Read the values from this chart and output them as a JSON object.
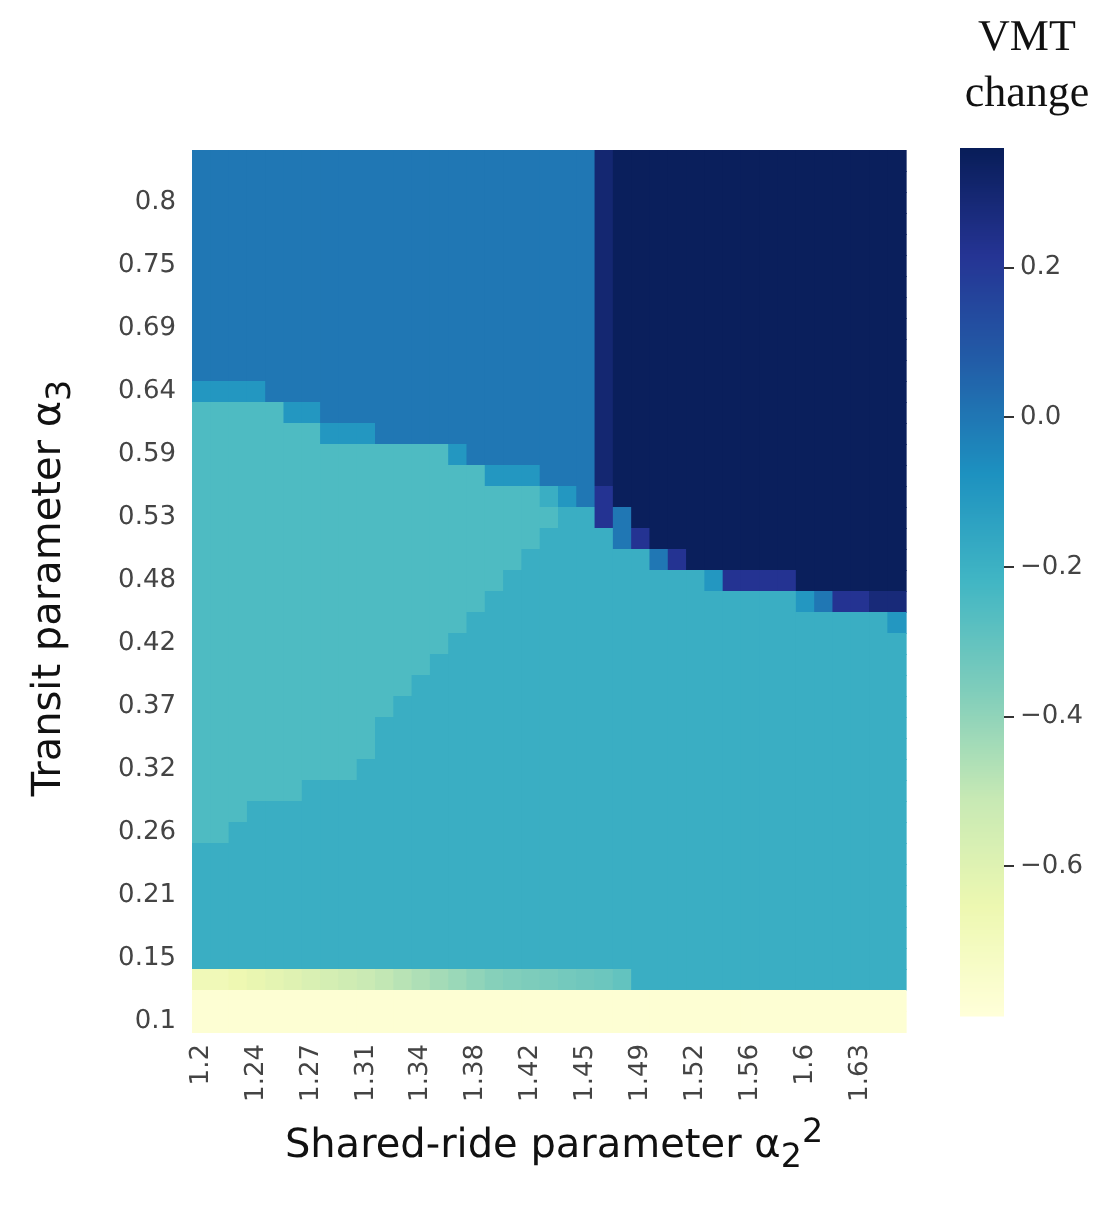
{
  "chart_data": {
    "type": "heatmap",
    "xlabel": "Shared-ride parameter α$_{2}$$^{2}$",
    "ylabel": "Transit parameter α$_{3}$",
    "clabel": "VMT change",
    "categories": [
      "1.2",
      null,
      null,
      "1.24",
      null,
      null,
      "1.27",
      null,
      null,
      "1.31",
      null,
      null,
      "1.34",
      null,
      null,
      "1.38",
      null,
      null,
      "1.42",
      null,
      null,
      "1.45",
      null,
      null,
      "1.49",
      null,
      null,
      "1.52",
      null,
      null,
      "1.56",
      null,
      null,
      "1.6",
      null,
      null,
      "1.63",
      null,
      null
    ],
    "y_categories": [
      null,
      null,
      "0.8",
      null,
      null,
      "0.75",
      null,
      null,
      "0.69",
      null,
      null,
      "0.64",
      null,
      null,
      "0.59",
      null,
      null,
      "0.53",
      null,
      null,
      "0.48",
      null,
      null,
      "0.42",
      null,
      null,
      "0.37",
      null,
      null,
      "0.32",
      null,
      null,
      "0.26",
      null,
      null,
      "0.21",
      null,
      null,
      "0.15",
      null,
      null,
      "0.1"
    ],
    "clim": [
      -0.8,
      0.36
    ],
    "cticks": [
      0.2,
      {
        "value": 0,
        "label": "0.0"
      },
      {
        "value": -0.2,
        "label": "−0.2"
      },
      {
        "value": -0.4,
        "label": "−0.4"
      },
      {
        "value": -0.6,
        "label": "−0.6"
      }
    ],
    "cells": [
      [
        0,
        0,
        0,
        0,
        0,
        0,
        0,
        0,
        0,
        0,
        0,
        0,
        0,
        0,
        0,
        0,
        0,
        0,
        0,
        0,
        0,
        0,
        0.3,
        0.35,
        0.35,
        0.35,
        0.35,
        0.35,
        0.35,
        0.35,
        0.35,
        0.35,
        0.35,
        0.35,
        0.35,
        0.35,
        0.35,
        0.35,
        0.35
      ],
      [
        0,
        0,
        0,
        0,
        0,
        0,
        0,
        0,
        0,
        0,
        0,
        0,
        0,
        0,
        0,
        0,
        0,
        0,
        0,
        0,
        0,
        0,
        0.3,
        0.35,
        0.35,
        0.35,
        0.35,
        0.35,
        0.35,
        0.35,
        0.35,
        0.35,
        0.35,
        0.35,
        0.35,
        0.35,
        0.35,
        0.35,
        0.35
      ],
      [
        0,
        0,
        0,
        0,
        0,
        0,
        0,
        0,
        0,
        0,
        0,
        0,
        0,
        0,
        0,
        0,
        0,
        0,
        0,
        0,
        0,
        0,
        0.3,
        0.35,
        0.35,
        0.35,
        0.35,
        0.35,
        0.35,
        0.35,
        0.35,
        0.35,
        0.35,
        0.35,
        0.35,
        0.35,
        0.35,
        0.35,
        0.35
      ],
      [
        0,
        0,
        0,
        0,
        0,
        0,
        0,
        0,
        0,
        0,
        0,
        0,
        0,
        0,
        0,
        0,
        0,
        0,
        0,
        0,
        0,
        0,
        0.3,
        0.35,
        0.35,
        0.35,
        0.35,
        0.35,
        0.35,
        0.35,
        0.35,
        0.35,
        0.35,
        0.35,
        0.35,
        0.35,
        0.35,
        0.35,
        0.35
      ],
      [
        0,
        0,
        0,
        0,
        0,
        0,
        0,
        0,
        0,
        0,
        0,
        0,
        0,
        0,
        0,
        0,
        0,
        0,
        0,
        0,
        0,
        0,
        0.3,
        0.35,
        0.35,
        0.35,
        0.35,
        0.35,
        0.35,
        0.35,
        0.35,
        0.35,
        0.35,
        0.35,
        0.35,
        0.35,
        0.35,
        0.35,
        0.35
      ],
      [
        0,
        0,
        0,
        0,
        0,
        0,
        0,
        0,
        0,
        0,
        0,
        0,
        0,
        0,
        0,
        0,
        0,
        0,
        0,
        0,
        0,
        0,
        0.3,
        0.35,
        0.35,
        0.35,
        0.35,
        0.35,
        0.35,
        0.35,
        0.35,
        0.35,
        0.35,
        0.35,
        0.35,
        0.35,
        0.35,
        0.35,
        0.35
      ],
      [
        0,
        0,
        0,
        0,
        0,
        0,
        0,
        0,
        0,
        0,
        0,
        0,
        0,
        0,
        0,
        0,
        0,
        0,
        0,
        0,
        0,
        0,
        0.3,
        0.35,
        0.35,
        0.35,
        0.35,
        0.35,
        0.35,
        0.35,
        0.35,
        0.35,
        0.35,
        0.35,
        0.35,
        0.35,
        0.35,
        0.35,
        0.35
      ],
      [
        0,
        0,
        0,
        0,
        0,
        0,
        0,
        0,
        0,
        0,
        0,
        0,
        0,
        0,
        0,
        0,
        0,
        0,
        0,
        0,
        0,
        0,
        0.3,
        0.35,
        0.35,
        0.35,
        0.35,
        0.35,
        0.35,
        0.35,
        0.35,
        0.35,
        0.35,
        0.35,
        0.35,
        0.35,
        0.35,
        0.35,
        0.35
      ],
      [
        0,
        0,
        0,
        0,
        0,
        0,
        0,
        0,
        0,
        0,
        0,
        0,
        0,
        0,
        0,
        0,
        0,
        0,
        0,
        0,
        0,
        0,
        0.3,
        0.35,
        0.35,
        0.35,
        0.35,
        0.35,
        0.35,
        0.35,
        0.35,
        0.35,
        0.35,
        0.35,
        0.35,
        0.35,
        0.35,
        0.35,
        0.35
      ],
      [
        0,
        0,
        0,
        0,
        0,
        0,
        0,
        0,
        0,
        0,
        0,
        0,
        0,
        0,
        0,
        0,
        0,
        0,
        0,
        0,
        0,
        0,
        0.3,
        0.35,
        0.35,
        0.35,
        0.35,
        0.35,
        0.35,
        0.35,
        0.35,
        0.35,
        0.35,
        0.35,
        0.35,
        0.35,
        0.35,
        0.35,
        0.35
      ],
      [
        0,
        0,
        0,
        0,
        0,
        0,
        0,
        0,
        0,
        0,
        0,
        0,
        0,
        0,
        0,
        0,
        0,
        0,
        0,
        0,
        0,
        0,
        0.3,
        0.35,
        0.35,
        0.35,
        0.35,
        0.35,
        0.35,
        0.35,
        0.35,
        0.35,
        0.35,
        0.35,
        0.35,
        0.35,
        0.35,
        0.35,
        0.35
      ],
      [
        -0.1,
        -0.1,
        -0.1,
        -0.1,
        0,
        0,
        0,
        0,
        0,
        0,
        0,
        0,
        0,
        0,
        0,
        0,
        0,
        0,
        0,
        0,
        0,
        0,
        0.3,
        0.35,
        0.35,
        0.35,
        0.35,
        0.35,
        0.35,
        0.35,
        0.35,
        0.35,
        0.35,
        0.35,
        0.35,
        0.35,
        0.35,
        0.35,
        0.35
      ],
      [
        -0.25,
        -0.25,
        -0.25,
        -0.25,
        -0.25,
        -0.1,
        -0.1,
        0,
        0,
        0,
        0,
        0,
        0,
        0,
        0,
        0,
        0,
        0,
        0,
        0,
        0,
        0,
        0.3,
        0.35,
        0.35,
        0.35,
        0.35,
        0.35,
        0.35,
        0.35,
        0.35,
        0.35,
        0.35,
        0.35,
        0.35,
        0.35,
        0.35,
        0.35,
        0.35
      ],
      [
        -0.25,
        -0.25,
        -0.25,
        -0.25,
        -0.25,
        -0.25,
        -0.25,
        -0.1,
        -0.1,
        -0.1,
        0,
        0,
        0,
        0,
        0,
        0,
        0,
        0,
        0,
        0,
        0,
        0,
        0.3,
        0.35,
        0.35,
        0.35,
        0.35,
        0.35,
        0.35,
        0.35,
        0.35,
        0.35,
        0.35,
        0.35,
        0.35,
        0.35,
        0.35,
        0.35,
        0.35
      ],
      [
        -0.25,
        -0.25,
        -0.25,
        -0.25,
        -0.25,
        -0.25,
        -0.25,
        -0.25,
        -0.25,
        -0.25,
        -0.25,
        -0.25,
        -0.25,
        -0.25,
        -0.1,
        0,
        0,
        0,
        0,
        0,
        0,
        0,
        0.3,
        0.35,
        0.35,
        0.35,
        0.35,
        0.35,
        0.35,
        0.35,
        0.35,
        0.35,
        0.35,
        0.35,
        0.35,
        0.35,
        0.35,
        0.35,
        0.35
      ],
      [
        -0.25,
        -0.25,
        -0.25,
        -0.25,
        -0.25,
        -0.25,
        -0.25,
        -0.25,
        -0.25,
        -0.25,
        -0.25,
        -0.25,
        -0.25,
        -0.25,
        -0.25,
        -0.25,
        -0.1,
        -0.1,
        -0.1,
        0,
        0,
        0,
        0.3,
        0.35,
        0.35,
        0.35,
        0.35,
        0.35,
        0.35,
        0.35,
        0.35,
        0.35,
        0.35,
        0.35,
        0.35,
        0.35,
        0.35,
        0.35,
        0.35
      ],
      [
        -0.25,
        -0.25,
        -0.25,
        -0.25,
        -0.25,
        -0.25,
        -0.25,
        -0.25,
        -0.25,
        -0.25,
        -0.25,
        -0.25,
        -0.25,
        -0.25,
        -0.25,
        -0.25,
        -0.25,
        -0.25,
        -0.25,
        -0.19,
        -0.1,
        0,
        0.22,
        0.35,
        0.35,
        0.35,
        0.35,
        0.35,
        0.35,
        0.35,
        0.35,
        0.35,
        0.35,
        0.35,
        0.35,
        0.35,
        0.35,
        0.35,
        0.35
      ],
      [
        -0.25,
        -0.25,
        -0.25,
        -0.25,
        -0.25,
        -0.25,
        -0.25,
        -0.25,
        -0.25,
        -0.25,
        -0.25,
        -0.25,
        -0.25,
        -0.25,
        -0.25,
        -0.25,
        -0.25,
        -0.25,
        -0.25,
        -0.25,
        -0.19,
        -0.19,
        0.22,
        0,
        0.35,
        0.35,
        0.35,
        0.35,
        0.35,
        0.35,
        0.35,
        0.35,
        0.35,
        0.35,
        0.35,
        0.35,
        0.35,
        0.35,
        0.35
      ],
      [
        -0.25,
        -0.25,
        -0.25,
        -0.25,
        -0.25,
        -0.25,
        -0.25,
        -0.25,
        -0.25,
        -0.25,
        -0.25,
        -0.25,
        -0.25,
        -0.25,
        -0.25,
        -0.25,
        -0.25,
        -0.25,
        -0.25,
        -0.19,
        -0.19,
        -0.19,
        -0.19,
        0,
        0.22,
        0.35,
        0.35,
        0.35,
        0.35,
        0.35,
        0.35,
        0.35,
        0.35,
        0.35,
        0.35,
        0.35,
        0.35,
        0.35,
        0.35
      ],
      [
        -0.25,
        -0.25,
        -0.25,
        -0.25,
        -0.25,
        -0.25,
        -0.25,
        -0.25,
        -0.25,
        -0.25,
        -0.25,
        -0.25,
        -0.25,
        -0.25,
        -0.25,
        -0.25,
        -0.25,
        -0.25,
        -0.19,
        -0.19,
        -0.19,
        -0.19,
        -0.19,
        -0.19,
        -0.19,
        0,
        0.22,
        0.35,
        0.35,
        0.35,
        0.35,
        0.35,
        0.35,
        0.35,
        0.35,
        0.35,
        0.35,
        0.35,
        0.35
      ],
      [
        -0.25,
        -0.25,
        -0.25,
        -0.25,
        -0.25,
        -0.25,
        -0.25,
        -0.25,
        -0.25,
        -0.25,
        -0.25,
        -0.25,
        -0.25,
        -0.25,
        -0.25,
        -0.25,
        -0.25,
        -0.19,
        -0.19,
        -0.19,
        -0.19,
        -0.19,
        -0.19,
        -0.19,
        -0.19,
        -0.19,
        -0.19,
        -0.19,
        -0.1,
        0.22,
        0.22,
        0.22,
        0.22,
        0.35,
        0.35,
        0.35,
        0.35,
        0.35,
        0.35
      ],
      [
        -0.25,
        -0.25,
        -0.25,
        -0.25,
        -0.25,
        -0.25,
        -0.25,
        -0.25,
        -0.25,
        -0.25,
        -0.25,
        -0.25,
        -0.25,
        -0.25,
        -0.25,
        -0.25,
        -0.19,
        -0.19,
        -0.19,
        -0.19,
        -0.19,
        -0.19,
        -0.19,
        -0.19,
        -0.19,
        -0.19,
        -0.19,
        -0.19,
        -0.19,
        -0.19,
        -0.19,
        -0.19,
        -0.19,
        -0.1,
        0,
        0.22,
        0.22,
        0.28,
        0.28
      ],
      [
        -0.25,
        -0.25,
        -0.25,
        -0.25,
        -0.25,
        -0.25,
        -0.25,
        -0.25,
        -0.25,
        -0.25,
        -0.25,
        -0.25,
        -0.25,
        -0.25,
        -0.25,
        -0.19,
        -0.19,
        -0.19,
        -0.19,
        -0.19,
        -0.19,
        -0.19,
        -0.19,
        -0.19,
        -0.19,
        -0.19,
        -0.19,
        -0.19,
        -0.19,
        -0.19,
        -0.19,
        -0.19,
        -0.19,
        -0.19,
        -0.19,
        -0.19,
        -0.19,
        -0.19,
        -0.1
      ],
      [
        -0.25,
        -0.25,
        -0.25,
        -0.25,
        -0.25,
        -0.25,
        -0.25,
        -0.25,
        -0.25,
        -0.25,
        -0.25,
        -0.25,
        -0.25,
        -0.25,
        -0.19,
        -0.19,
        -0.19,
        -0.19,
        -0.19,
        -0.19,
        -0.19,
        -0.19,
        -0.19,
        -0.19,
        -0.19,
        -0.19,
        -0.19,
        -0.19,
        -0.19,
        -0.19,
        -0.19,
        -0.19,
        -0.19,
        -0.19,
        -0.19,
        -0.19,
        -0.19,
        -0.19,
        -0.19
      ],
      [
        -0.25,
        -0.25,
        -0.25,
        -0.25,
        -0.25,
        -0.25,
        -0.25,
        -0.25,
        -0.25,
        -0.25,
        -0.25,
        -0.25,
        -0.25,
        -0.19,
        -0.19,
        -0.19,
        -0.19,
        -0.19,
        -0.19,
        -0.19,
        -0.19,
        -0.19,
        -0.19,
        -0.19,
        -0.19,
        -0.19,
        -0.19,
        -0.19,
        -0.19,
        -0.19,
        -0.19,
        -0.19,
        -0.19,
        -0.19,
        -0.19,
        -0.19,
        -0.19,
        -0.19,
        -0.19
      ],
      [
        -0.25,
        -0.25,
        -0.25,
        -0.25,
        -0.25,
        -0.25,
        -0.25,
        -0.25,
        -0.25,
        -0.25,
        -0.25,
        -0.25,
        -0.19,
        -0.19,
        -0.19,
        -0.19,
        -0.19,
        -0.19,
        -0.19,
        -0.19,
        -0.19,
        -0.19,
        -0.19,
        -0.19,
        -0.19,
        -0.19,
        -0.19,
        -0.19,
        -0.19,
        -0.19,
        -0.19,
        -0.19,
        -0.19,
        -0.19,
        -0.19,
        -0.19,
        -0.19,
        -0.19,
        -0.19
      ],
      [
        -0.25,
        -0.25,
        -0.25,
        -0.25,
        -0.25,
        -0.25,
        -0.25,
        -0.25,
        -0.25,
        -0.25,
        -0.25,
        -0.19,
        -0.19,
        -0.19,
        -0.19,
        -0.19,
        -0.19,
        -0.19,
        -0.19,
        -0.19,
        -0.19,
        -0.19,
        -0.19,
        -0.19,
        -0.19,
        -0.19,
        -0.19,
        -0.19,
        -0.19,
        -0.19,
        -0.19,
        -0.19,
        -0.19,
        -0.19,
        -0.19,
        -0.19,
        -0.19,
        -0.19,
        -0.19
      ],
      [
        -0.25,
        -0.25,
        -0.25,
        -0.25,
        -0.25,
        -0.25,
        -0.25,
        -0.25,
        -0.25,
        -0.25,
        -0.19,
        -0.19,
        -0.19,
        -0.19,
        -0.19,
        -0.19,
        -0.19,
        -0.19,
        -0.19,
        -0.19,
        -0.19,
        -0.19,
        -0.19,
        -0.19,
        -0.19,
        -0.19,
        -0.19,
        -0.19,
        -0.19,
        -0.19,
        -0.19,
        -0.19,
        -0.19,
        -0.19,
        -0.19,
        -0.19,
        -0.19,
        -0.19,
        -0.19
      ],
      [
        -0.25,
        -0.25,
        -0.25,
        -0.25,
        -0.25,
        -0.25,
        -0.25,
        -0.25,
        -0.25,
        -0.25,
        -0.19,
        -0.19,
        -0.19,
        -0.19,
        -0.19,
        -0.19,
        -0.19,
        -0.19,
        -0.19,
        -0.19,
        -0.19,
        -0.19,
        -0.19,
        -0.19,
        -0.19,
        -0.19,
        -0.19,
        -0.19,
        -0.19,
        -0.19,
        -0.19,
        -0.19,
        -0.19,
        -0.19,
        -0.19,
        -0.19,
        -0.19,
        -0.19,
        -0.19
      ],
      [
        -0.25,
        -0.25,
        -0.25,
        -0.25,
        -0.25,
        -0.25,
        -0.25,
        -0.25,
        -0.25,
        -0.19,
        -0.19,
        -0.19,
        -0.19,
        -0.19,
        -0.19,
        -0.19,
        -0.19,
        -0.19,
        -0.19,
        -0.19,
        -0.19,
        -0.19,
        -0.19,
        -0.19,
        -0.19,
        -0.19,
        -0.19,
        -0.19,
        -0.19,
        -0.19,
        -0.19,
        -0.19,
        -0.19,
        -0.19,
        -0.19,
        -0.19,
        -0.19,
        -0.19,
        -0.19
      ],
      [
        -0.25,
        -0.25,
        -0.25,
        -0.25,
        -0.25,
        -0.25,
        -0.19,
        -0.19,
        -0.19,
        -0.19,
        -0.19,
        -0.19,
        -0.19,
        -0.19,
        -0.19,
        -0.19,
        -0.19,
        -0.19,
        -0.19,
        -0.19,
        -0.19,
        -0.19,
        -0.19,
        -0.19,
        -0.19,
        -0.19,
        -0.19,
        -0.19,
        -0.19,
        -0.19,
        -0.19,
        -0.19,
        -0.19,
        -0.19,
        -0.19,
        -0.19,
        -0.19,
        -0.19,
        -0.19
      ],
      [
        -0.25,
        -0.25,
        -0.25,
        -0.19,
        -0.19,
        -0.19,
        -0.19,
        -0.19,
        -0.19,
        -0.19,
        -0.19,
        -0.19,
        -0.19,
        -0.19,
        -0.19,
        -0.19,
        -0.19,
        -0.19,
        -0.19,
        -0.19,
        -0.19,
        -0.19,
        -0.19,
        -0.19,
        -0.19,
        -0.19,
        -0.19,
        -0.19,
        -0.19,
        -0.19,
        -0.19,
        -0.19,
        -0.19,
        -0.19,
        -0.19,
        -0.19,
        -0.19,
        -0.19,
        -0.19
      ],
      [
        -0.25,
        -0.25,
        -0.19,
        -0.19,
        -0.19,
        -0.19,
        -0.19,
        -0.19,
        -0.19,
        -0.19,
        -0.19,
        -0.19,
        -0.19,
        -0.19,
        -0.19,
        -0.19,
        -0.19,
        -0.19,
        -0.19,
        -0.19,
        -0.19,
        -0.19,
        -0.19,
        -0.19,
        -0.19,
        -0.19,
        -0.19,
        -0.19,
        -0.19,
        -0.19,
        -0.19,
        -0.19,
        -0.19,
        -0.19,
        -0.19,
        -0.19,
        -0.19,
        -0.19,
        -0.19
      ],
      [
        -0.19,
        -0.19,
        -0.19,
        -0.19,
        -0.19,
        -0.19,
        -0.19,
        -0.19,
        -0.19,
        -0.19,
        -0.19,
        -0.19,
        -0.19,
        -0.19,
        -0.19,
        -0.19,
        -0.19,
        -0.19,
        -0.19,
        -0.19,
        -0.19,
        -0.19,
        -0.19,
        -0.19,
        -0.19,
        -0.19,
        -0.19,
        -0.19,
        -0.19,
        -0.19,
        -0.19,
        -0.19,
        -0.19,
        -0.19,
        -0.19,
        -0.19,
        -0.19,
        -0.19,
        -0.19
      ],
      [
        -0.19,
        -0.19,
        -0.19,
        -0.19,
        -0.19,
        -0.19,
        -0.19,
        -0.19,
        -0.19,
        -0.19,
        -0.19,
        -0.19,
        -0.19,
        -0.19,
        -0.19,
        -0.19,
        -0.19,
        -0.19,
        -0.19,
        -0.19,
        -0.19,
        -0.19,
        -0.19,
        -0.19,
        -0.19,
        -0.19,
        -0.19,
        -0.19,
        -0.19,
        -0.19,
        -0.19,
        -0.19,
        -0.19,
        -0.19,
        -0.19,
        -0.19,
        -0.19,
        -0.19,
        -0.19
      ],
      [
        -0.19,
        -0.19,
        -0.19,
        -0.19,
        -0.19,
        -0.19,
        -0.19,
        -0.19,
        -0.19,
        -0.19,
        -0.19,
        -0.19,
        -0.19,
        -0.19,
        -0.19,
        -0.19,
        -0.19,
        -0.19,
        -0.19,
        -0.19,
        -0.19,
        -0.19,
        -0.19,
        -0.19,
        -0.19,
        -0.19,
        -0.19,
        -0.19,
        -0.19,
        -0.19,
        -0.19,
        -0.19,
        -0.19,
        -0.19,
        -0.19,
        -0.19,
        -0.19,
        -0.19,
        -0.19
      ],
      [
        -0.19,
        -0.19,
        -0.19,
        -0.19,
        -0.19,
        -0.19,
        -0.19,
        -0.19,
        -0.19,
        -0.19,
        -0.19,
        -0.19,
        -0.19,
        -0.19,
        -0.19,
        -0.19,
        -0.19,
        -0.19,
        -0.19,
        -0.19,
        -0.19,
        -0.19,
        -0.19,
        -0.19,
        -0.19,
        -0.19,
        -0.19,
        -0.19,
        -0.19,
        -0.19,
        -0.19,
        -0.19,
        -0.19,
        -0.19,
        -0.19,
        -0.19,
        -0.19,
        -0.19,
        -0.19
      ],
      [
        -0.19,
        -0.19,
        -0.19,
        -0.19,
        -0.19,
        -0.19,
        -0.19,
        -0.19,
        -0.19,
        -0.19,
        -0.19,
        -0.19,
        -0.19,
        -0.19,
        -0.19,
        -0.19,
        -0.19,
        -0.19,
        -0.19,
        -0.19,
        -0.19,
        -0.19,
        -0.19,
        -0.19,
        -0.19,
        -0.19,
        -0.19,
        -0.19,
        -0.19,
        -0.19,
        -0.19,
        -0.19,
        -0.19,
        -0.19,
        -0.19,
        -0.19,
        -0.19,
        -0.19,
        -0.19
      ],
      [
        -0.19,
        -0.19,
        -0.19,
        -0.19,
        -0.19,
        -0.19,
        -0.19,
        -0.19,
        -0.19,
        -0.19,
        -0.19,
        -0.19,
        -0.19,
        -0.19,
        -0.19,
        -0.19,
        -0.19,
        -0.19,
        -0.19,
        -0.19,
        -0.19,
        -0.19,
        -0.19,
        -0.19,
        -0.19,
        -0.19,
        -0.19,
        -0.19,
        -0.19,
        -0.19,
        -0.19,
        -0.19,
        -0.19,
        -0.19,
        -0.19,
        -0.19,
        -0.19,
        -0.19,
        -0.19
      ],
      [
        -0.68,
        -0.68,
        -0.66,
        -0.64,
        -0.62,
        -0.6,
        -0.58,
        -0.56,
        -0.54,
        -0.52,
        -0.5,
        -0.48,
        -0.46,
        -0.44,
        -0.42,
        -0.4,
        -0.38,
        -0.37,
        -0.36,
        -0.35,
        -0.34,
        -0.33,
        -0.32,
        -0.3,
        -0.19,
        -0.19,
        -0.19,
        -0.19,
        -0.19,
        -0.19,
        -0.19,
        -0.19,
        -0.19,
        -0.19,
        -0.19,
        -0.19,
        -0.19,
        -0.19,
        -0.19
      ],
      [
        -0.78,
        -0.78,
        -0.78,
        -0.78,
        -0.78,
        -0.78,
        -0.78,
        -0.78,
        -0.78,
        -0.78,
        -0.78,
        -0.78,
        -0.78,
        -0.78,
        -0.78,
        -0.78,
        -0.78,
        -0.78,
        -0.78,
        -0.78,
        -0.78,
        -0.78,
        -0.78,
        -0.78,
        -0.78,
        -0.78,
        -0.78,
        -0.78,
        -0.78,
        -0.78,
        -0.78,
        -0.78,
        -0.78,
        -0.78,
        -0.78,
        -0.78,
        -0.78,
        -0.78,
        -0.78
      ],
      [
        -0.78,
        -0.78,
        -0.78,
        -0.78,
        -0.78,
        -0.78,
        -0.78,
        -0.78,
        -0.78,
        -0.78,
        -0.78,
        -0.78,
        -0.78,
        -0.78,
        -0.78,
        -0.78,
        -0.78,
        -0.78,
        -0.78,
        -0.78,
        -0.78,
        -0.78,
        -0.78,
        -0.78,
        -0.78,
        -0.78,
        -0.78,
        -0.78,
        -0.78,
        -0.78,
        -0.78,
        -0.78,
        -0.78,
        -0.78,
        -0.78,
        -0.78,
        -0.78,
        -0.78,
        -0.78
      ]
    ]
  }
}
